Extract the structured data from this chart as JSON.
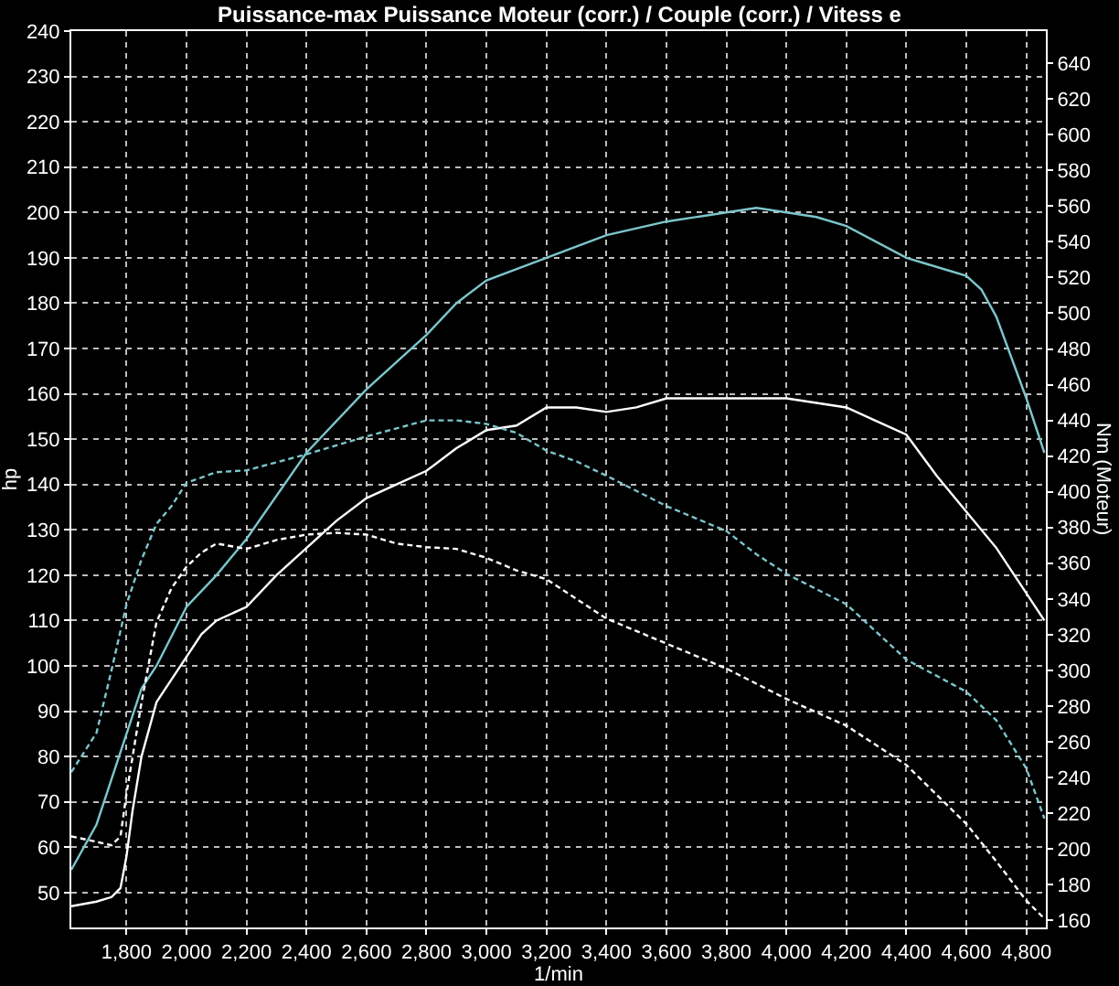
{
  "chart_data": {
    "type": "line",
    "title": "Puissance-max Puissance Moteur (corr.) / Couple (corr.) / Vitess e",
    "xlabel": "1/min",
    "ylabel": "hp",
    "y2label": "Nm (Moteur)",
    "xlim": [
      1616,
      4865
    ],
    "ylim": [
      42.3,
      240
    ],
    "y2lim": [
      156,
      658
    ],
    "xticks": [
      {
        "value": 1800,
        "label": "1,800"
      },
      {
        "value": 2000,
        "label": "2,000"
      },
      {
        "value": 2200,
        "label": "2,200"
      },
      {
        "value": 2400,
        "label": "2,400"
      },
      {
        "value": 2600,
        "label": "2,600"
      },
      {
        "value": 2800,
        "label": "2,800"
      },
      {
        "value": 3000,
        "label": "3,000"
      },
      {
        "value": 3200,
        "label": "3,200"
      },
      {
        "value": 3400,
        "label": "3,400"
      },
      {
        "value": 3600,
        "label": "3,600"
      },
      {
        "value": 3800,
        "label": "3,800"
      },
      {
        "value": 4000,
        "label": "4,000"
      },
      {
        "value": 4200,
        "label": "4,200"
      },
      {
        "value": 4400,
        "label": "4,400"
      },
      {
        "value": 4600,
        "label": "4,600"
      },
      {
        "value": 4800,
        "label": "4,800"
      }
    ],
    "yticks": [
      50,
      60,
      70,
      80,
      90,
      100,
      110,
      120,
      130,
      140,
      150,
      160,
      170,
      180,
      190,
      200,
      210,
      220,
      230,
      240
    ],
    "y2ticks": [
      160,
      180,
      200,
      220,
      240,
      260,
      280,
      300,
      320,
      340,
      360,
      380,
      400,
      420,
      440,
      460,
      480,
      500,
      520,
      540,
      560,
      580,
      600,
      620,
      640
    ],
    "grid": true,
    "marker": "none",
    "series": [
      {
        "color": "#7cc6cc",
        "line_style": "solid",
        "x": [
          1616,
          1700,
          1800,
          1850,
          1900,
          2000,
          2100,
          2200,
          2400,
          2600,
          2800,
          2900,
          3000,
          3200,
          3400,
          3600,
          3800,
          3900,
          4000,
          4100,
          4200,
          4400,
          4500,
          4600,
          4650,
          4700,
          4800,
          4860
        ],
        "values": [
          55,
          65,
          85,
          95,
          100,
          113,
          120,
          128,
          147,
          161,
          173,
          180,
          185,
          190,
          195,
          198,
          200,
          201,
          200,
          199,
          197,
          190,
          188,
          186,
          183,
          177,
          159,
          147
        ]
      },
      {
        "color": "#ffffff",
        "line_style": "solid",
        "x": [
          1616,
          1700,
          1750,
          1780,
          1800,
          1820,
          1850,
          1900,
          1950,
          2000,
          2050,
          2100,
          2200,
          2300,
          2400,
          2500,
          2600,
          2700,
          2800,
          2900,
          3000,
          3100,
          3200,
          3300,
          3400,
          3500,
          3600,
          3700,
          3800,
          3900,
          4000,
          4100,
          4200,
          4300,
          4400,
          4500,
          4600,
          4700,
          4800,
          4860
        ],
        "values": [
          47,
          48,
          49,
          51,
          58,
          68,
          80,
          92,
          97,
          102,
          107,
          110,
          113,
          120,
          126,
          132,
          137,
          140,
          143,
          148,
          152,
          153,
          157,
          157,
          156,
          157,
          159,
          159,
          159,
          159,
          159,
          158,
          157,
          154,
          151,
          142,
          134,
          126,
          116,
          110
        ]
      },
      {
        "color": "#7cc6cc",
        "line_style": "dashed",
        "axis": "y2",
        "x": [
          1616,
          1700,
          1750,
          1800,
          1850,
          1900,
          1950,
          2000,
          2100,
          2200,
          2400,
          2600,
          2800,
          2900,
          3000,
          3100,
          3200,
          3300,
          3400,
          3600,
          3800,
          3900,
          4000,
          4200,
          4400,
          4600,
          4700,
          4800,
          4860
        ],
        "values": [
          243,
          265,
          300,
          337,
          362,
          382,
          392,
          405,
          411,
          412,
          421,
          431,
          440,
          440,
          438,
          433,
          423,
          417,
          409,
          392,
          378,
          365,
          354,
          337,
          306,
          288,
          272,
          245,
          217
        ]
      },
      {
        "color": "#ffffff",
        "line_style": "dashed",
        "axis": "y2",
        "x": [
          1616,
          1700,
          1750,
          1780,
          1800,
          1850,
          1900,
          1950,
          2000,
          2050,
          2100,
          2200,
          2300,
          2400,
          2500,
          2600,
          2700,
          2800,
          2900,
          3000,
          3100,
          3200,
          3300,
          3400,
          3600,
          3800,
          4000,
          4200,
          4400,
          4600,
          4700,
          4800,
          4860
        ],
        "values": [
          207,
          204,
          202,
          207,
          231,
          282,
          327,
          346,
          358,
          366,
          371,
          368,
          373,
          376,
          377,
          376,
          371,
          369,
          368,
          363,
          356,
          351,
          340,
          329,
          315,
          301,
          284,
          269,
          247,
          214,
          193,
          171,
          161
        ]
      }
    ]
  }
}
